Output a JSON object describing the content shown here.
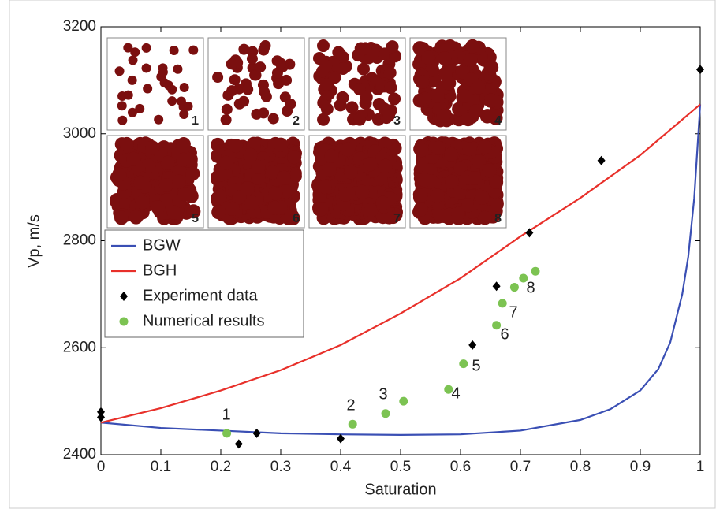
{
  "chart_data": {
    "type": "scatter",
    "xlabel": "Saturation",
    "ylabel": "Vp, m/s",
    "xlim": [
      0,
      1
    ],
    "ylim": [
      2400,
      3200
    ],
    "xticks": [
      0,
      0.1,
      0.2,
      0.3,
      0.4,
      0.5,
      0.6,
      0.7,
      0.8,
      0.9,
      1
    ],
    "yticks": [
      2400,
      2600,
      2800,
      3000,
      3200
    ],
    "legend": "middle-left",
    "series": [
      {
        "name": "BGW",
        "color": "#3a4fb4",
        "type": "line",
        "x": [
          0,
          0.1,
          0.2,
          0.3,
          0.4,
          0.5,
          0.6,
          0.7,
          0.8,
          0.85,
          0.9,
          0.93,
          0.95,
          0.97,
          0.98,
          0.99,
          1
        ],
        "y": [
          2460,
          2450,
          2445,
          2440,
          2438,
          2437,
          2438,
          2445,
          2465,
          2485,
          2520,
          2560,
          2610,
          2700,
          2770,
          2880,
          3055
        ]
      },
      {
        "name": "BGH",
        "color": "#e8302a",
        "type": "line",
        "x": [
          0,
          0.1,
          0.2,
          0.3,
          0.4,
          0.5,
          0.6,
          0.7,
          0.8,
          0.9,
          1
        ],
        "y": [
          2460,
          2487,
          2520,
          2558,
          2605,
          2664,
          2730,
          2808,
          2880,
          2960,
          3055
        ]
      },
      {
        "name": "Experiment data",
        "color": "#000000",
        "type": "diamond",
        "x": [
          0,
          0,
          0.23,
          0.26,
          0.4,
          0.62,
          0.66,
          0.715,
          0.835,
          1
        ],
        "y": [
          2480,
          2470,
          2420,
          2440,
          2430,
          2605,
          2715,
          2815,
          2950,
          3120
        ]
      },
      {
        "name": "Numerical results",
        "color": "#7cc352",
        "type": "dot",
        "x": [
          0.21,
          0.42,
          0.475,
          0.505,
          0.58,
          0.605,
          0.66,
          0.67,
          0.69,
          0.705,
          0.725
        ],
        "y": [
          2440,
          2457,
          2477,
          2500,
          2522,
          2570,
          2642,
          2683,
          2713,
          2730,
          2743
        ]
      }
    ],
    "annotations": [
      "1",
      "2",
      "3",
      "4",
      "5",
      "6",
      "7",
      "8"
    ],
    "inset_labels": [
      "1",
      "2",
      "3",
      "4",
      "5",
      "6",
      "7",
      "8"
    ]
  }
}
